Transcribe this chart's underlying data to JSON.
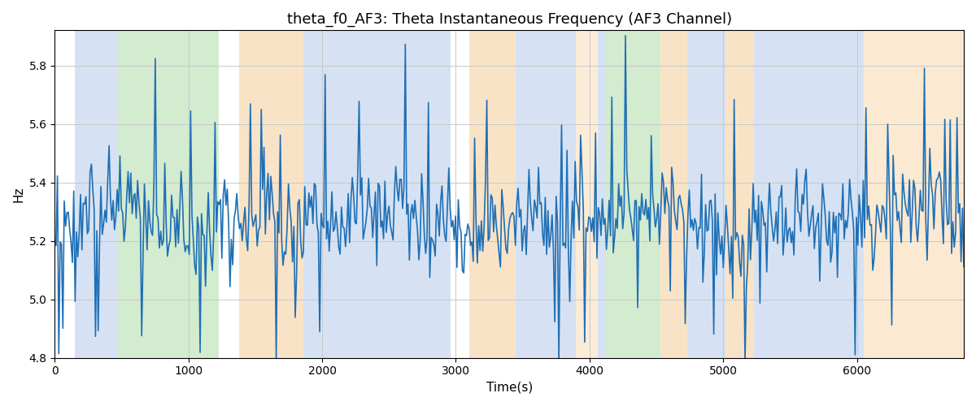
{
  "title": "theta_f0_AF3: Theta Instantaneous Frequency (AF3 Channel)",
  "xlabel": "Time(s)",
  "ylabel": "Hz",
  "ylim": [
    4.8,
    5.92
  ],
  "xlim": [
    0,
    6800
  ],
  "yticks": [
    4.8,
    5.0,
    5.2,
    5.4,
    5.6,
    5.8
  ],
  "xticks": [
    0,
    1000,
    2000,
    3000,
    4000,
    5000,
    6000
  ],
  "line_color": "#1f6fb5",
  "line_width": 1.2,
  "background_color": "#ffffff",
  "grid_color": "#c8c8c8",
  "bands": [
    {
      "start": 150,
      "end": 470,
      "color": "#aec6e8",
      "alpha": 0.5
    },
    {
      "start": 470,
      "end": 1230,
      "color": "#a8d8a0",
      "alpha": 0.5
    },
    {
      "start": 1380,
      "end": 1860,
      "color": "#f5c990",
      "alpha": 0.5
    },
    {
      "start": 1860,
      "end": 2960,
      "color": "#aec6e8",
      "alpha": 0.5
    },
    {
      "start": 2960,
      "end": 3100,
      "color": "#ffffff",
      "alpha": 0.0
    },
    {
      "start": 3100,
      "end": 3450,
      "color": "#f5c990",
      "alpha": 0.5
    },
    {
      "start": 3450,
      "end": 3900,
      "color": "#aec6e8",
      "alpha": 0.5
    },
    {
      "start": 3900,
      "end": 4060,
      "color": "#f5c990",
      "alpha": 0.35
    },
    {
      "start": 4060,
      "end": 4120,
      "color": "#aec6e8",
      "alpha": 0.5
    },
    {
      "start": 4120,
      "end": 4530,
      "color": "#a8d8a0",
      "alpha": 0.5
    },
    {
      "start": 4530,
      "end": 4730,
      "color": "#f5c990",
      "alpha": 0.5
    },
    {
      "start": 4730,
      "end": 5020,
      "color": "#aec6e8",
      "alpha": 0.5
    },
    {
      "start": 5020,
      "end": 5230,
      "color": "#f5c990",
      "alpha": 0.5
    },
    {
      "start": 5230,
      "end": 6050,
      "color": "#aec6e8",
      "alpha": 0.5
    },
    {
      "start": 6050,
      "end": 6800,
      "color": "#f5c990",
      "alpha": 0.4
    }
  ],
  "seed": 7,
  "n_points": 670,
  "signal_mean": 5.27,
  "signal_std": 0.09,
  "figsize": [
    12,
    5
  ],
  "dpi": 100
}
